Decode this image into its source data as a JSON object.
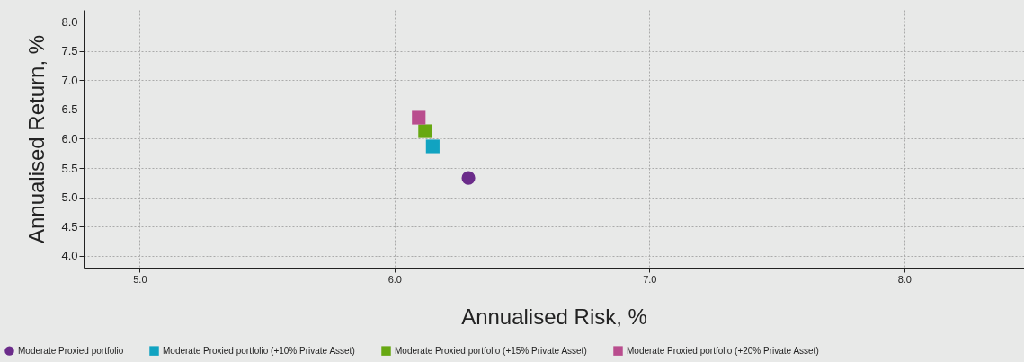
{
  "chart_data": {
    "type": "scatter",
    "xlabel": "Annualised Risk, %",
    "ylabel": "Annualised Return, %",
    "series": [
      {
        "name": "Moderate Proxied portfolio",
        "color": "#6b2c8a",
        "marker": "circle",
        "x": [
          6.29
        ],
        "values": [
          5.33
        ]
      },
      {
        "name": "Moderate Proxied portfolio (+10% Private Asset)",
        "color": "#11a3c1",
        "marker": "square",
        "x": [
          6.15
        ],
        "values": [
          5.87
        ]
      },
      {
        "name": "Moderate Proxied portfolio (+15% Private Asset)",
        "color": "#67a812",
        "marker": "square",
        "x": [
          6.12
        ],
        "values": [
          6.13
        ]
      },
      {
        "name": "Moderate Proxied portfolio (+20% Private Asset)",
        "color": "#b94d8e",
        "marker": "square",
        "x": [
          6.095
        ],
        "values": [
          6.36
        ]
      }
    ],
    "xlim": [
      4.78,
      8.47
    ],
    "ylim": [
      3.8,
      8.2
    ],
    "xticks": [
      {
        "value": 5,
        "label": "5.0"
      },
      {
        "value": 6,
        "label": "6.0"
      },
      {
        "value": 7,
        "label": "7.0"
      },
      {
        "value": 8,
        "label": "8.0"
      }
    ],
    "yticks": [
      {
        "value": 4,
        "label": "4.0"
      },
      {
        "value": 4.5,
        "label": "4.5"
      },
      {
        "value": 5,
        "label": "5.0"
      },
      {
        "value": 5.5,
        "label": "5.5"
      },
      {
        "value": 6,
        "label": "6.0"
      },
      {
        "value": 6.5,
        "label": "6.5"
      },
      {
        "value": 7,
        "label": "7.0"
      },
      {
        "value": 7.5,
        "label": "7.5"
      },
      {
        "value": 8,
        "label": "8.0"
      }
    ],
    "grid": true,
    "legend": "bottom"
  }
}
